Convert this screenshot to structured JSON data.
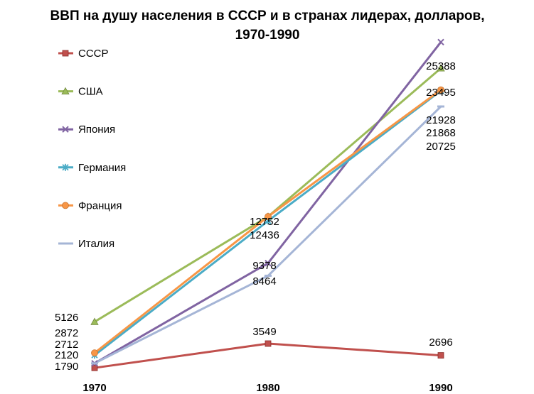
{
  "chart_data": {
    "type": "line",
    "title_lines": [
      "ВВП на душу населения в СССР и в странах лидерах, долларов,",
      "1970-1990"
    ],
    "categories": [
      "1970",
      "1980",
      "1990"
    ],
    "ylim": [
      0,
      27000
    ],
    "grid": false,
    "legend_position": "left",
    "series": [
      {
        "name": "СССР",
        "color": "#C0504D",
        "marker": "square",
        "values": [
          1790,
          3549,
          2696
        ]
      },
      {
        "name": "США",
        "color": "#9BBB59",
        "marker": "triangle",
        "values": [
          5126,
          12752,
          23495
        ]
      },
      {
        "name": "Япония",
        "color": "#8064A2",
        "marker": "x",
        "values": [
          2120,
          9378,
          25388
        ]
      },
      {
        "name": "Германия",
        "color": "#4BACC6",
        "marker": "star",
        "values": [
          2712,
          12436,
          21868
        ]
      },
      {
        "name": "Франция",
        "color": "#F79646",
        "marker": "circle",
        "values": [
          2872,
          12752,
          21928
        ]
      },
      {
        "name": "Италия",
        "color": "#A5B5D6",
        "marker": "dash",
        "values": [
          2120,
          8464,
          20725
        ]
      }
    ],
    "data_labels": [
      {
        "category": "1970",
        "values": [
          5126,
          2872,
          2712,
          2120,
          1790
        ]
      },
      {
        "category": "1980",
        "values": [
          12752,
          12436,
          9378,
          8464,
          3549
        ]
      },
      {
        "category": "1990",
        "values": [
          25388,
          23495,
          21928,
          21868,
          20725,
          2696
        ]
      }
    ]
  }
}
